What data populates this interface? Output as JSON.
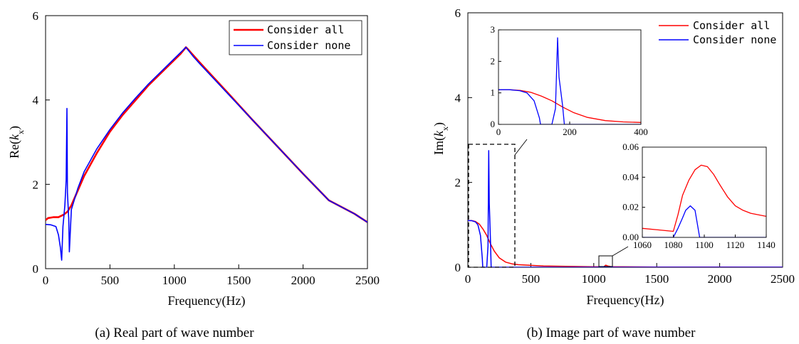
{
  "chart_data": [
    {
      "id": "a",
      "type": "line",
      "caption": "(a) Real part of wave number",
      "xlabel": "Frequency(Hz)",
      "ylabel": "Re(",
      "ylabel_italic": "k",
      "ylabel_sub": "x",
      "ylabel_close": ")",
      "xlim": [
        0,
        2500
      ],
      "ylim": [
        0,
        6
      ],
      "xticks": [
        "0",
        "500",
        "1000",
        "1500",
        "2000",
        "2500"
      ],
      "yticks": [
        "0",
        "2",
        "4",
        "6"
      ],
      "legend_position": "top-right",
      "series": [
        {
          "name": "Consider all",
          "color": "#ff0000",
          "x": [
            0,
            20,
            60,
            100,
            140,
            170,
            200,
            250,
            300,
            400,
            500,
            600,
            700,
            800,
            900,
            1000,
            1050,
            1090,
            1100,
            1150,
            1200,
            1400,
            1600,
            1800,
            2000,
            2200,
            2400,
            2500
          ],
          "y": [
            1.15,
            1.2,
            1.22,
            1.22,
            1.28,
            1.35,
            1.5,
            1.85,
            2.2,
            2.75,
            3.25,
            3.65,
            4.0,
            4.35,
            4.65,
            4.95,
            5.1,
            5.25,
            5.22,
            5.05,
            4.88,
            4.22,
            3.55,
            2.9,
            2.25,
            1.62,
            1.3,
            1.1
          ]
        },
        {
          "name": "Consider none",
          "color": "#0000ff",
          "x": [
            0,
            40,
            80,
            100,
            115,
            125,
            135,
            150,
            160,
            166,
            170,
            180,
            185,
            200,
            250,
            300,
            400,
            500,
            600,
            700,
            800,
            900,
            1000,
            1090,
            1150,
            1200,
            1400,
            1600,
            1800,
            2000,
            2200,
            2400,
            2500
          ],
          "y": [
            1.05,
            1.04,
            1.0,
            0.8,
            0.5,
            0.2,
            1.0,
            1.5,
            2.1,
            3.8,
            1.8,
            1.2,
            0.4,
            1.4,
            1.9,
            2.3,
            2.85,
            3.3,
            3.7,
            4.05,
            4.38,
            4.68,
            4.98,
            5.25,
            5.02,
            4.85,
            4.2,
            3.55,
            2.9,
            2.25,
            1.62,
            1.3,
            1.1
          ]
        }
      ]
    },
    {
      "id": "b",
      "type": "line",
      "caption": "(b) Image part of wave number",
      "xlabel": "Frequency(Hz)",
      "ylabel": "Im(",
      "ylabel_italic": "k",
      "ylabel_sub": "x",
      "ylabel_close": ")",
      "xlim": [
        0,
        2500
      ],
      "ylim": [
        0,
        6
      ],
      "xticks": [
        "0",
        "500",
        "1000",
        "1500",
        "2000",
        "2500"
      ],
      "yticks": [
        "0",
        "2",
        "4",
        "6"
      ],
      "legend_position": "top-right",
      "series": [
        {
          "name": "Consider all",
          "color": "#ff0000",
          "x": [
            0,
            30,
            60,
            90,
            120,
            150,
            180,
            210,
            250,
            300,
            350,
            400,
            600,
            1000,
            1080,
            1095,
            1110,
            1140,
            1500,
            2500
          ],
          "y": [
            1.1,
            1.1,
            1.08,
            1.02,
            0.9,
            0.75,
            0.55,
            0.38,
            0.22,
            0.12,
            0.08,
            0.06,
            0.03,
            0.01,
            0.01,
            0.048,
            0.03,
            0.013,
            0.005,
            0.002
          ]
        },
        {
          "name": "Consider none",
          "color": "#0000ff",
          "x": [
            0,
            30,
            60,
            80,
            100,
            115,
            118,
            150,
            160,
            166,
            170,
            180,
            185,
            300,
            1080,
            1090,
            1100,
            1500,
            2500
          ],
          "y": [
            1.1,
            1.1,
            1.07,
            1.0,
            0.75,
            0.2,
            0,
            0,
            0.5,
            2.75,
            1.5,
            0.6,
            0,
            0,
            0,
            0.02,
            0,
            0,
            0
          ]
        }
      ],
      "insets": [
        {
          "id": "inset-low",
          "xlim": [
            0,
            400
          ],
          "ylim": [
            0,
            3
          ],
          "xticks": [
            "0",
            "200",
            "400"
          ],
          "yticks": [
            "0",
            "1",
            "2",
            "3"
          ],
          "series": [
            {
              "name": "Consider all",
              "color": "#ff0000",
              "x": [
                0,
                30,
                60,
                90,
                120,
                150,
                180,
                210,
                250,
                300,
                350,
                400
              ],
              "y": [
                1.1,
                1.1,
                1.08,
                1.02,
                0.9,
                0.75,
                0.55,
                0.38,
                0.22,
                0.12,
                0.08,
                0.06
              ]
            },
            {
              "name": "Consider none",
              "color": "#0000ff",
              "x": [
                0,
                30,
                60,
                80,
                100,
                115,
                118,
                150,
                160,
                166,
                170,
                180,
                185,
                400
              ],
              "y": [
                1.1,
                1.1,
                1.07,
                1.0,
                0.75,
                0.2,
                0,
                0,
                0.5,
                2.75,
                1.5,
                0.6,
                0,
                0
              ]
            }
          ]
        },
        {
          "id": "inset-high",
          "xlim": [
            1060,
            1140
          ],
          "ylim": [
            0,
            0.06
          ],
          "xticks": [
            "1060",
            "1080",
            "1100",
            "1120",
            "1140"
          ],
          "yticks": [
            "0.00",
            "0.02",
            "0.04",
            "0.06"
          ],
          "series": [
            {
              "name": "Consider all",
              "color": "#ff0000",
              "x": [
                1060,
                1070,
                1080,
                1083,
                1086,
                1090,
                1094,
                1098,
                1102,
                1106,
                1110,
                1115,
                1120,
                1125,
                1130,
                1135,
                1140
              ],
              "y": [
                0.006,
                0.005,
                0.004,
                0.015,
                0.028,
                0.038,
                0.045,
                0.048,
                0.047,
                0.042,
                0.035,
                0.027,
                0.021,
                0.018,
                0.016,
                0.015,
                0.014
              ]
            },
            {
              "name": "Consider none",
              "color": "#0000ff",
              "x": [
                1060,
                1080,
                1083,
                1086,
                1088,
                1091,
                1094,
                1097,
                1140
              ],
              "y": [
                0,
                0,
                0.006,
                0.013,
                0.018,
                0.021,
                0.018,
                0,
                0
              ]
            }
          ]
        }
      ]
    }
  ]
}
